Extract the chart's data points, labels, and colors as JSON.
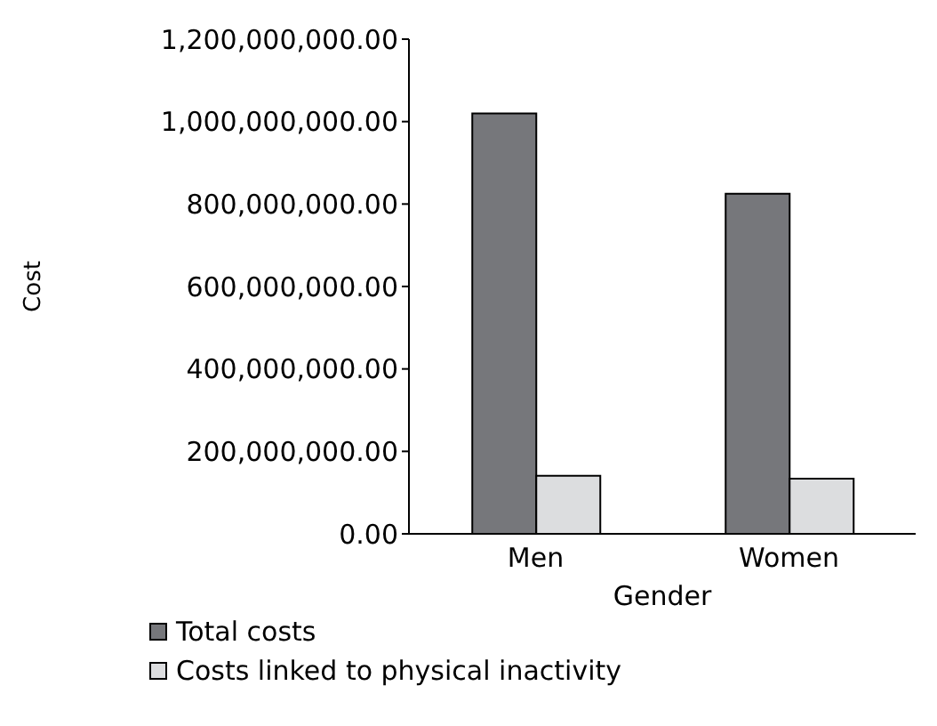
{
  "chart_data": {
    "type": "bar",
    "xlabel": "Gender",
    "ylabel": "Cost",
    "categories": [
      "Men",
      "Women"
    ],
    "series": [
      {
        "name": "Total costs",
        "color": "#76777b",
        "values": [
          1020000000,
          825000000
        ]
      },
      {
        "name": "Costs linked to physical inactivity",
        "color": "#dcdddf",
        "values": [
          141000000,
          134000000
        ]
      }
    ],
    "ylim": [
      0,
      1200000000
    ],
    "yticks": [
      {
        "value": 0,
        "label": "0.00"
      },
      {
        "value": 200000000,
        "label": "200,000,000.00"
      },
      {
        "value": 400000000,
        "label": "400,000,000.00"
      },
      {
        "value": 600000000,
        "label": "600,000,000.00"
      },
      {
        "value": 800000000,
        "label": "800,000,000.00"
      },
      {
        "value": 1000000000,
        "label": "1,000,000,000.00"
      },
      {
        "value": 1200000000,
        "label": "1,200,000,000.00"
      }
    ],
    "grid": false,
    "legend": "bottom"
  }
}
